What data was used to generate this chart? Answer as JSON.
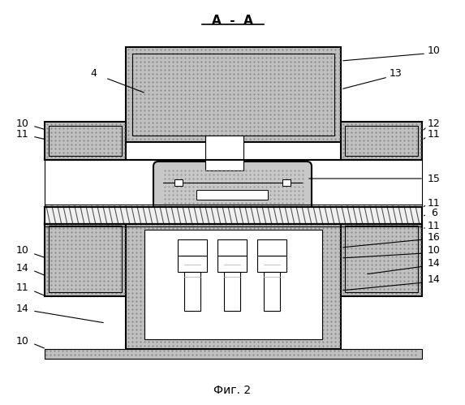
{
  "title": "А  -  А",
  "caption": "Фиг. 2",
  "bg_color": "#ffffff",
  "gray": "#c0c0c0",
  "dark_gray": "#a0a0a0",
  "light_gray": "#e0e0e0",
  "dot_gray": "#c8c8c8",
  "dark": "#000000",
  "white": "#ffffff",
  "lw_main": 1.5,
  "lw_thin": 0.8
}
